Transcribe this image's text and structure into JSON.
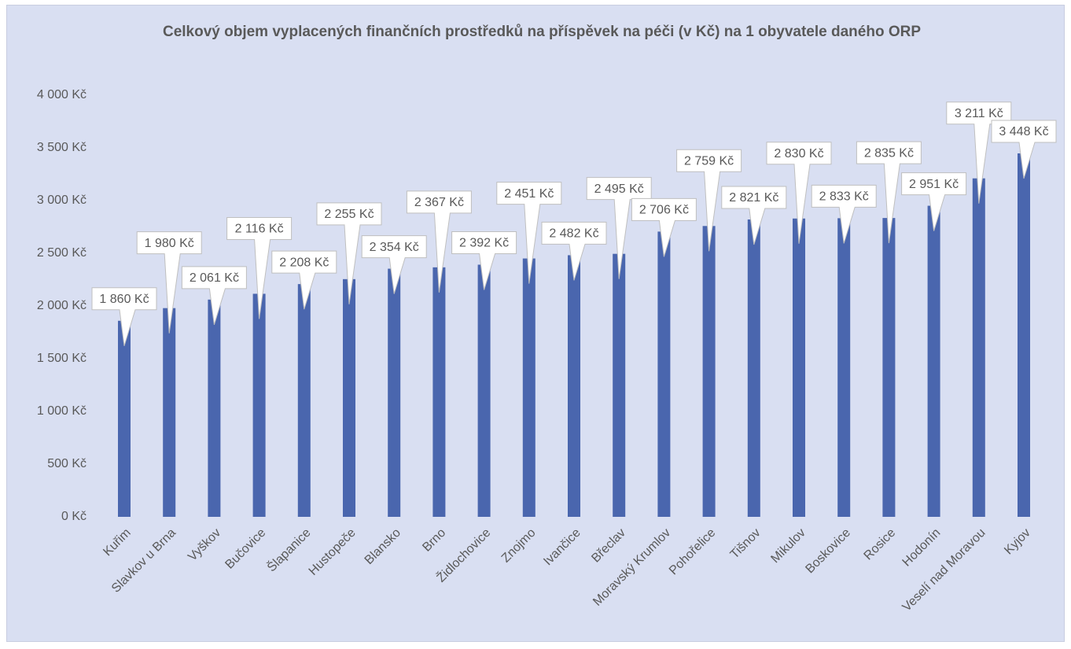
{
  "chart_data": {
    "type": "bar",
    "title": "Celkový objem vyplacených finančních prostředků na příspěvek na péči (v Kč) na 1 obyvatele daného ORP",
    "categories": [
      "Kuřim",
      "Slavkov u Brna",
      "Vyškov",
      "Bučovice",
      "Šlapanice",
      "Hustopeče",
      "Blansko",
      "Brno",
      "Židlochovice",
      "Znojmo",
      "Ivančice",
      "Břeclav",
      "Moravský Krumlov",
      "Pohořelice",
      "Tišnov",
      "Mikulov",
      "Boskovice",
      "Rosice",
      "Hodonín",
      "Veselí nad Moravou",
      "Kyjov"
    ],
    "values": [
      1860,
      1980,
      2061,
      2116,
      2208,
      2255,
      2354,
      2367,
      2392,
      2451,
      2482,
      2495,
      2706,
      2759,
      2821,
      2830,
      2833,
      2835,
      2951,
      3211,
      3448
    ],
    "value_labels": [
      "1 860 Kč",
      "1 980 Kč",
      "2 061 Kč",
      "2 116 Kč",
      "2 208 Kč",
      "2 255 Kč",
      "2 354 Kč",
      "2 367 Kč",
      "2 392 Kč",
      "2 451 Kč",
      "2 482 Kč",
      "2 495 Kč",
      "2 706 Kč",
      "2 759 Kč",
      "2 821 Kč",
      "2 830 Kč",
      "2 833 Kč",
      "2 835 Kč",
      "2 951 Kč",
      "3 211 Kč",
      "3 448 Kč"
    ],
    "color": "#4a66ae",
    "ylim": [
      0,
      4000
    ],
    "yticks": [
      {
        "value": 0,
        "label": "0 Kč"
      },
      {
        "value": 500,
        "label": "500 Kč"
      },
      {
        "value": 1000,
        "label": "1 000 Kč"
      },
      {
        "value": 1500,
        "label": "1 500 Kč"
      },
      {
        "value": 2000,
        "label": "2 000 Kč"
      },
      {
        "value": 2500,
        "label": "2 500 Kč"
      },
      {
        "value": 3000,
        "label": "3 000 Kč"
      },
      {
        "value": 3500,
        "label": "3 500 Kč"
      },
      {
        "value": 4000,
        "label": "4 000 Kč"
      }
    ],
    "grid": false
  }
}
